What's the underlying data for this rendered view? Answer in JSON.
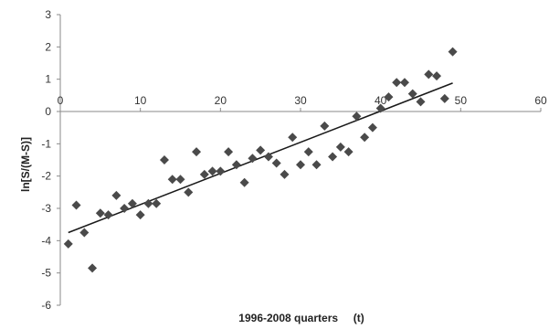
{
  "chart_data": {
    "type": "scatter",
    "xlabel": "1996-2008 quarters     (t)",
    "ylabel": "ln[S/(M-S)]",
    "xlim": [
      0,
      60
    ],
    "ylim": [
      -6,
      3
    ],
    "x_ticks": [
      0,
      10,
      20,
      30,
      40,
      50,
      60
    ],
    "y_ticks": [
      3,
      2,
      1,
      0,
      -1,
      -2,
      -3,
      -4,
      -5,
      -6
    ],
    "grid": false,
    "legend": "none",
    "marker": "diamond",
    "marker_color": "#4a4a4a",
    "points": [
      [
        1,
        -4.1
      ],
      [
        2,
        -2.9
      ],
      [
        3,
        -3.75
      ],
      [
        4,
        -4.85
      ],
      [
        5,
        -3.15
      ],
      [
        6,
        -3.2
      ],
      [
        7,
        -2.6
      ],
      [
        8,
        -3.0
      ],
      [
        9,
        -2.85
      ],
      [
        10,
        -3.2
      ],
      [
        11,
        -2.85
      ],
      [
        12,
        -2.85
      ],
      [
        13,
        -1.5
      ],
      [
        14,
        -2.1
      ],
      [
        15,
        -2.1
      ],
      [
        16,
        -2.5
      ],
      [
        17,
        -1.25
      ],
      [
        18,
        -1.95
      ],
      [
        19,
        -1.85
      ],
      [
        20,
        -1.85
      ],
      [
        21,
        -1.25
      ],
      [
        22,
        -1.65
      ],
      [
        23,
        -2.2
      ],
      [
        24,
        -1.45
      ],
      [
        25,
        -1.2
      ],
      [
        26,
        -1.4
      ],
      [
        27,
        -1.6
      ],
      [
        28,
        -1.95
      ],
      [
        29,
        -0.8
      ],
      [
        30,
        -1.65
      ],
      [
        31,
        -1.25
      ],
      [
        32,
        -1.65
      ],
      [
        33,
        -0.45
      ],
      [
        34,
        -1.4
      ],
      [
        35,
        -1.1
      ],
      [
        36,
        -1.25
      ],
      [
        37,
        -0.15
      ],
      [
        38,
        -0.8
      ],
      [
        39,
        -0.5
      ],
      [
        40,
        0.1
      ],
      [
        41,
        0.45
      ],
      [
        42,
        0.9
      ],
      [
        43,
        0.9
      ],
      [
        44,
        0.55
      ],
      [
        45,
        0.3
      ],
      [
        46,
        1.15
      ],
      [
        47,
        1.1
      ],
      [
        48,
        0.4
      ],
      [
        49,
        1.85
      ]
    ],
    "trendline": {
      "type": "linear",
      "x": [
        1,
        49
      ],
      "y": [
        -3.75,
        0.88
      ]
    }
  }
}
